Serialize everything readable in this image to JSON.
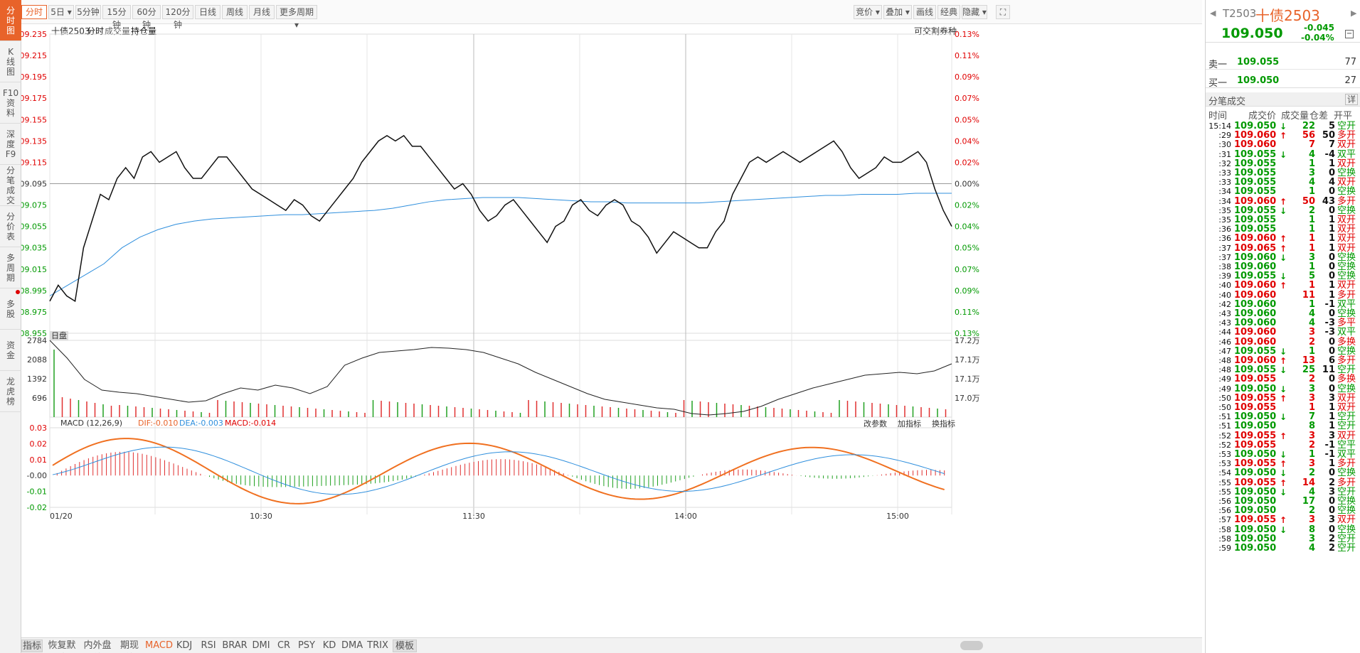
{
  "left_tabs": [
    {
      "label": "分时图",
      "active": true
    },
    {
      "label": "K线图"
    },
    {
      "label": "F10资料"
    },
    {
      "label": "深度F9"
    },
    {
      "label": "分笔成交"
    },
    {
      "label": "分价表"
    },
    {
      "label": "多周期"
    },
    {
      "label": "多股",
      "dot": true
    },
    {
      "label": "资金"
    },
    {
      "label": "龙虎榜"
    }
  ],
  "period_tabs": [
    "分时",
    "5日",
    "5分钟",
    "15分钟",
    "60分钟",
    "120分钟",
    "日线",
    "周线",
    "月线",
    "更多周期"
  ],
  "right_tools": [
    "竞价",
    "叠加",
    "画线",
    "经典",
    "隐藏"
  ],
  "chart_header": {
    "code": "十债2503",
    "mode": "分时",
    "vol_label": "成交量",
    "oi_label": "持仓量",
    "right_link": "可交割券种"
  },
  "price_axis": {
    "left": [
      "109.235",
      "109.215",
      "109.195",
      "109.175",
      "109.155",
      "109.135",
      "109.115",
      "109.095",
      "109.075",
      "109.055",
      "109.035",
      "109.015",
      "108.995",
      "108.975",
      "108.955"
    ],
    "right": [
      "0.13%",
      "0.11%",
      "0.09%",
      "0.07%",
      "0.05%",
      "0.04%",
      "0.02%",
      "0.00%",
      "0.02%",
      "0.04%",
      "0.05%",
      "0.07%",
      "0.09%",
      "0.11%",
      "0.13%"
    ]
  },
  "vol_axis": {
    "left": [
      "2784",
      "2088",
      "1392",
      "696"
    ],
    "right": [
      "17.2万",
      "17.1万",
      "17.1万",
      "17.0万"
    ],
    "tag": "日盘"
  },
  "macd_header": {
    "name": "MACD (12,26,9)",
    "dif": "DIF:-0.010",
    "dea": "DEA:-0.003",
    "macd": "MACD:-0.014",
    "buttons": [
      "改参数",
      "加指标",
      "换指标"
    ]
  },
  "macd_axis": [
    "0.03",
    "0.02",
    "0.01",
    "-0.00",
    "-0.01",
    "-0.02"
  ],
  "time_axis": [
    "01/20",
    "10:30",
    "11:30",
    "14:00",
    "15:00"
  ],
  "bottom_tabs": [
    "指标",
    "恢复默认",
    "内外盘差",
    "期现差",
    "MACD",
    "KDJ",
    "RSI",
    "BRAR",
    "DMI",
    "CR",
    "PSY",
    "KD",
    "DMA",
    "TRIX",
    "模板"
  ],
  "quote": {
    "code": "T2503",
    "name": "十债2503",
    "price": "109.050",
    "change": "-0.045",
    "change_pct": "-0.04%",
    "ask": {
      "label": "卖一",
      "price": "109.055",
      "vol": "77"
    },
    "bid": {
      "label": "买一",
      "price": "109.050",
      "vol": "27"
    }
  },
  "ticks_header": {
    "title": "分笔成交",
    "detail": "详",
    "cols": [
      "时间",
      "成交价",
      "成交量",
      "仓差",
      "开平"
    ]
  },
  "ticks": [
    [
      "15:14",
      "109.050",
      "↓",
      "22",
      "5",
      "空开",
      "g"
    ],
    [
      ":29",
      "109.060",
      "↑",
      "56",
      "50",
      "多开",
      "r"
    ],
    [
      ":30",
      "109.060",
      "",
      "7",
      "7",
      "双开",
      "r"
    ],
    [
      ":31",
      "109.055",
      "↓",
      "4",
      "-4",
      "双平",
      "g"
    ],
    [
      ":32",
      "109.055",
      "",
      "1",
      "1",
      "双开",
      "g"
    ],
    [
      ":33",
      "109.055",
      "",
      "3",
      "0",
      "空换",
      "g"
    ],
    [
      ":33",
      "109.055",
      "",
      "4",
      "4",
      "双开",
      "g"
    ],
    [
      ":34",
      "109.055",
      "",
      "1",
      "0",
      "空换",
      "g"
    ],
    [
      ":34",
      "109.060",
      "↑",
      "50",
      "43",
      "多开",
      "r"
    ],
    [
      ":35",
      "109.055",
      "↓",
      "2",
      "0",
      "空换",
      "g"
    ],
    [
      ":35",
      "109.055",
      "",
      "1",
      "1",
      "双开",
      "g"
    ],
    [
      ":36",
      "109.055",
      "",
      "1",
      "1",
      "双开",
      "g"
    ],
    [
      ":36",
      "109.060",
      "↑",
      "1",
      "1",
      "双开",
      "r"
    ],
    [
      ":37",
      "109.065",
      "↑",
      "1",
      "1",
      "双开",
      "r"
    ],
    [
      ":37",
      "109.060",
      "↓",
      "3",
      "0",
      "空换",
      "g"
    ],
    [
      ":38",
      "109.060",
      "",
      "1",
      "0",
      "空换",
      "g"
    ],
    [
      ":39",
      "109.055",
      "↓",
      "5",
      "0",
      "空换",
      "g"
    ],
    [
      ":40",
      "109.060",
      "↑",
      "1",
      "1",
      "双开",
      "r"
    ],
    [
      ":40",
      "109.060",
      "",
      "11",
      "1",
      "多开",
      "r"
    ],
    [
      ":42",
      "109.060",
      "",
      "1",
      "-1",
      "双平",
      "g"
    ],
    [
      ":43",
      "109.060",
      "",
      "4",
      "0",
      "空换",
      "g"
    ],
    [
      ":43",
      "109.060",
      "",
      "4",
      "-3",
      "多平",
      "g"
    ],
    [
      ":44",
      "109.060",
      "",
      "3",
      "-3",
      "双平",
      "r"
    ],
    [
      ":46",
      "109.060",
      "",
      "2",
      "0",
      "多换",
      "r"
    ],
    [
      ":47",
      "109.055",
      "↓",
      "1",
      "0",
      "空换",
      "g"
    ],
    [
      ":48",
      "109.060",
      "↑",
      "13",
      "6",
      "多开",
      "r"
    ],
    [
      ":48",
      "109.055",
      "↓",
      "25",
      "11",
      "空开",
      "g"
    ],
    [
      ":49",
      "109.055",
      "",
      "2",
      "0",
      "多换",
      "r"
    ],
    [
      ":49",
      "109.050",
      "↓",
      "3",
      "0",
      "空换",
      "g"
    ],
    [
      ":50",
      "109.055",
      "↑",
      "3",
      "3",
      "双开",
      "r"
    ],
    [
      ":50",
      "109.055",
      "",
      "1",
      "1",
      "双开",
      "r"
    ],
    [
      ":51",
      "109.050",
      "↓",
      "7",
      "1",
      "空开",
      "g"
    ],
    [
      ":51",
      "109.050",
      "",
      "8",
      "1",
      "空开",
      "g"
    ],
    [
      ":52",
      "109.055",
      "↑",
      "3",
      "3",
      "双开",
      "r"
    ],
    [
      ":52",
      "109.055",
      "",
      "2",
      "-1",
      "空平",
      "r"
    ],
    [
      ":53",
      "109.050",
      "↓",
      "1",
      "-1",
      "双平",
      "g"
    ],
    [
      ":53",
      "109.055",
      "↑",
      "3",
      "1",
      "多开",
      "r"
    ],
    [
      ":54",
      "109.050",
      "↓",
      "2",
      "0",
      "空换",
      "g"
    ],
    [
      ":55",
      "109.055",
      "↑",
      "14",
      "2",
      "多开",
      "r"
    ],
    [
      ":55",
      "109.050",
      "↓",
      "4",
      "3",
      "空开",
      "g"
    ],
    [
      ":56",
      "109.050",
      "",
      "17",
      "0",
      "空换",
      "g"
    ],
    [
      ":56",
      "109.050",
      "",
      "2",
      "0",
      "空换",
      "g"
    ],
    [
      ":57",
      "109.055",
      "↑",
      "3",
      "3",
      "双开",
      "r"
    ],
    [
      ":58",
      "109.050",
      "↓",
      "8",
      "0",
      "空换",
      "g"
    ],
    [
      ":58",
      "109.050",
      "",
      "3",
      "2",
      "空开",
      "g"
    ],
    [
      ":59",
      "109.050",
      "",
      "4",
      "2",
      "空开",
      "g"
    ]
  ],
  "chart_data": {
    "type": "line",
    "title": "十债2503 分时",
    "x_ticks": [
      "01/20",
      "10:30",
      "11:30",
      "14:00",
      "15:00"
    ],
    "ylim": [
      108.955,
      109.235
    ],
    "prev_close": 109.095,
    "price": [
      108.985,
      109.0,
      108.99,
      108.985,
      109.035,
      109.06,
      109.085,
      109.08,
      109.1,
      109.11,
      109.1,
      109.12,
      109.125,
      109.115,
      109.12,
      109.125,
      109.11,
      109.1,
      109.1,
      109.11,
      109.12,
      109.12,
      109.11,
      109.1,
      109.09,
      109.085,
      109.08,
      109.075,
      109.07,
      109.08,
      109.075,
      109.065,
      109.06,
      109.07,
      109.08,
      109.09,
      109.1,
      109.115,
      109.125,
      109.135,
      109.14,
      109.135,
      109.14,
      109.13,
      109.13,
      109.12,
      109.11,
      109.1,
      109.09,
      109.095,
      109.085,
      109.07,
      109.06,
      109.065,
      109.075,
      109.08,
      109.07,
      109.06,
      109.05,
      109.04,
      109.055,
      109.06,
      109.075,
      109.08,
      109.07,
      109.065,
      109.075,
      109.08,
      109.075,
      109.06,
      109.055,
      109.045,
      109.03,
      109.04,
      109.05,
      109.045,
      109.04,
      109.035,
      109.035,
      109.05,
      109.06,
      109.085,
      109.1,
      109.115,
      109.12,
      109.115,
      109.12,
      109.125,
      109.12,
      109.115,
      109.12,
      109.125,
      109.13,
      109.135,
      109.125,
      109.11,
      109.1,
      109.105,
      109.11,
      109.12,
      109.115,
      109.115,
      109.12,
      109.125,
      109.115,
      109.09,
      109.07,
      109.055
    ],
    "avg_price": [
      108.99,
      109.0,
      109.01,
      109.02,
      109.035,
      109.045,
      109.052,
      109.057,
      109.06,
      109.062,
      109.063,
      109.064,
      109.065,
      109.066,
      109.066,
      109.067,
      109.068,
      109.069,
      109.07,
      109.072,
      109.075,
      109.078,
      109.08,
      109.081,
      109.082,
      109.082,
      109.082,
      109.081,
      109.08,
      109.079,
      109.078,
      109.078,
      109.077,
      109.077,
      109.077,
      109.077,
      109.077,
      109.078,
      109.079,
      109.08,
      109.081,
      109.082,
      109.083,
      109.084,
      109.084,
      109.085,
      109.085,
      109.085,
      109.086,
      109.086,
      109.086
    ],
    "volume_max": 2784,
    "oi_range": [
      "17.0万",
      "17.2万"
    ],
    "macd": {
      "dif": -0.01,
      "dea": -0.003,
      "macd": -0.014,
      "ylim": [
        -0.02,
        0.03
      ]
    }
  }
}
